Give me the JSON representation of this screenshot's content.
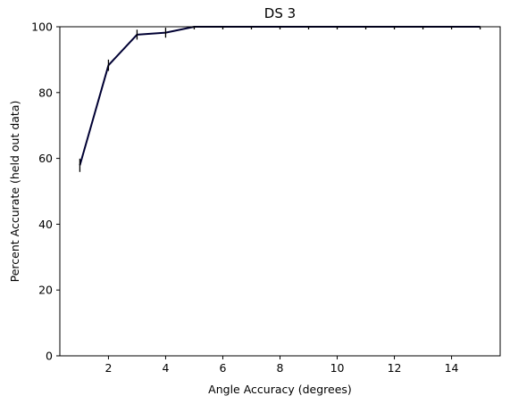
{
  "chart_data": {
    "type": "line",
    "title": "DS 3",
    "xlabel": "Angle Accuracy (degrees)",
    "ylabel": "Percent Accurate (held out data)",
    "xlim": [
      0.3,
      15.7
    ],
    "ylim": [
      0,
      100
    ],
    "xticks": [
      2,
      4,
      6,
      8,
      10,
      12,
      14
    ],
    "yticks": [
      0,
      20,
      40,
      60,
      80,
      100
    ],
    "grid": false,
    "series": [
      {
        "color": "#000033",
        "x": [
          1,
          2,
          3,
          4,
          5,
          6,
          7,
          8,
          9,
          10,
          11,
          12,
          13,
          14,
          15
        ],
        "y": [
          57.9,
          88.3,
          97.6,
          98.2,
          100,
          100,
          100,
          100,
          100,
          100,
          100,
          100,
          100,
          100,
          100
        ],
        "error": [
          1.2,
          0.9,
          0.7,
          0.7,
          0,
          0,
          0,
          0,
          0,
          0,
          0,
          0,
          0,
          0,
          0
        ]
      }
    ]
  }
}
